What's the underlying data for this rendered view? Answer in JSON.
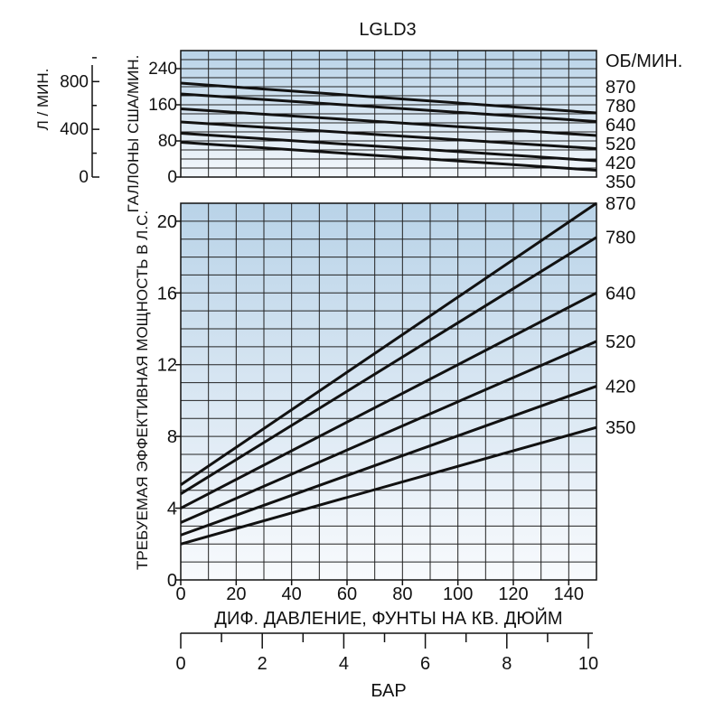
{
  "chart_data": [
    {
      "type": "line",
      "title": "LGLD3",
      "ylabel": "ГАЛЛОНЫ США/МИН.",
      "ylabel_secondary": "Л / МИН.",
      "rpm_header": "ОБ/МИН.",
      "xlim": [
        0,
        150
      ],
      "ylim": [
        0,
        280
      ],
      "yticks": [
        "0",
        "80",
        "160",
        "240"
      ],
      "yticks_secondary": [
        "0",
        "400",
        "800"
      ],
      "grid": true,
      "series": [
        {
          "name": "870",
          "x": [
            0,
            150
          ],
          "y": [
            208,
            142
          ]
        },
        {
          "name": "780",
          "x": [
            0,
            150
          ],
          "y": [
            184,
            123
          ]
        },
        {
          "name": "640",
          "x": [
            0,
            150
          ],
          "y": [
            151,
            92
          ]
        },
        {
          "name": "520",
          "x": [
            0,
            150
          ],
          "y": [
            122,
            63
          ]
        },
        {
          "name": "420",
          "x": [
            0,
            150
          ],
          "y": [
            97,
            36
          ]
        },
        {
          "name": "350",
          "x": [
            0,
            150
          ],
          "y": [
            77,
            15
          ]
        }
      ]
    },
    {
      "type": "line",
      "ylabel": "ТРЕБУЕМАЯ ЭФФЕКТИВНАЯ МОЩНОСТЬ В Л.С.",
      "xlabel": "ДИФ. ДАВЛЕНИЕ, ФУНТЫ НА КВ. ДЮЙМ",
      "xlabel_secondary": "БАР",
      "xlim": [
        0,
        150
      ],
      "ylim": [
        0,
        21
      ],
      "xticks": [
        "0",
        "20",
        "40",
        "60",
        "80",
        "100",
        "120",
        "140"
      ],
      "yticks": [
        "0",
        "4",
        "8",
        "12",
        "16",
        "20"
      ],
      "xticks_secondary": [
        "0",
        "2",
        "4",
        "6",
        "8",
        "10"
      ],
      "grid": true,
      "series": [
        {
          "name": "870",
          "x": [
            0,
            150
          ],
          "y": [
            5.3,
            21.0
          ]
        },
        {
          "name": "780",
          "x": [
            0,
            150
          ],
          "y": [
            4.8,
            19.1
          ]
        },
        {
          "name": "640",
          "x": [
            0,
            150
          ],
          "y": [
            4.0,
            16.0
          ]
        },
        {
          "name": "520",
          "x": [
            0,
            150
          ],
          "y": [
            3.2,
            13.3
          ]
        },
        {
          "name": "420",
          "x": [
            0,
            150
          ],
          "y": [
            2.5,
            10.8
          ]
        },
        {
          "name": "350",
          "x": [
            0,
            150
          ],
          "y": [
            2.0,
            8.5
          ]
        }
      ]
    }
  ]
}
